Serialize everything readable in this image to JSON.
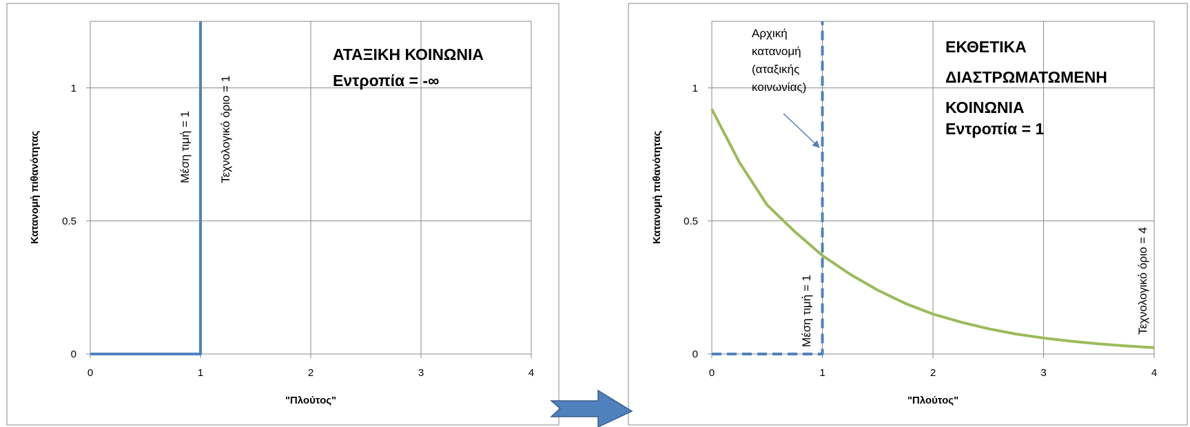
{
  "chart_data": [
    {
      "type": "line",
      "xlabel": "\"Πλούτος\"",
      "ylabel": "Κατανομή πιθανότητας",
      "xlim": [
        0,
        4
      ],
      "ylim": [
        0,
        1.25
      ],
      "x_ticks": [
        "0",
        "1",
        "2",
        "3",
        "4"
      ],
      "y_ticks": [
        "0",
        "0.5",
        "1"
      ],
      "grid": true,
      "title_lines": [
        "ΑΤΑΞΙΚΗ ΚΟΙΝΩΝΙΑ",
        "Εντροπία = -∞"
      ],
      "annotations": {
        "mean": "Μέση τιμή = 1",
        "limit": "Τεχνολογικό όριο = 1"
      },
      "series": [
        {
          "style": "solid",
          "color": "#4f81bd",
          "points": [
            [
              0,
              0
            ],
            [
              1,
              0
            ],
            [
              1,
              1.25
            ]
          ]
        }
      ]
    },
    {
      "type": "line",
      "xlabel": "\"Πλούτος\"",
      "ylabel": "Κατανομή πιθανότητας",
      "xlim": [
        0,
        4
      ],
      "ylim": [
        0,
        1.25
      ],
      "x_ticks": [
        "0",
        "1",
        "2",
        "3",
        "4"
      ],
      "y_ticks": [
        "0",
        "0.5",
        "1"
      ],
      "grid": true,
      "title_lines": [
        "ΕΚΘΕΤΙΚΑ",
        "ΔΙΑΣΤΡΩΜΑΤΩΜΕΝΗ",
        "ΚΟΙΝΩΝΙΑ",
        "Εντροπία = 1"
      ],
      "annotations": {
        "initial": [
          "Αρχική",
          "κατανομή",
          "(αταξικής",
          "κοινωνίας)"
        ],
        "mean": "Μέση τιμή = 1",
        "limit": "Τεχνολογικό όριο = 4"
      },
      "series": [
        {
          "style": "dashed",
          "color": "#4f81bd",
          "points": [
            [
              0,
              0
            ],
            [
              1,
              0
            ],
            [
              1,
              1.25
            ]
          ]
        },
        {
          "style": "solid",
          "color": "#9bbb59",
          "points": [
            [
              0,
              0.92
            ],
            [
              0.25,
              0.72
            ],
            [
              0.5,
              0.56
            ],
            [
              0.75,
              0.46
            ],
            [
              1,
              0.37
            ],
            [
              1.25,
              0.3
            ],
            [
              1.5,
              0.24
            ],
            [
              1.75,
              0.19
            ],
            [
              2,
              0.15
            ],
            [
              2.25,
              0.12
            ],
            [
              2.5,
              0.095
            ],
            [
              2.75,
              0.075
            ],
            [
              3,
              0.06
            ],
            [
              3.25,
              0.048
            ],
            [
              3.5,
              0.038
            ],
            [
              3.75,
              0.03
            ],
            [
              4,
              0.024
            ]
          ]
        }
      ]
    }
  ]
}
